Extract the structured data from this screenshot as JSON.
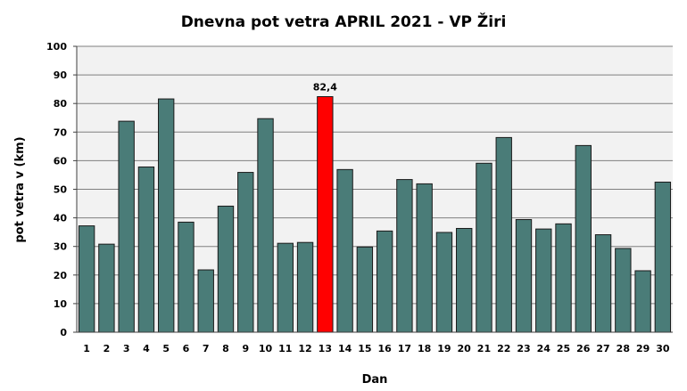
{
  "chart_data": {
    "type": "bar",
    "title": "Dnevna pot vetra APRIL 2021 - VP Žiri",
    "xlabel": "Dan",
    "ylabel": "pot vetra  v (km)",
    "categories": [
      "1",
      "2",
      "3",
      "4",
      "5",
      "6",
      "7",
      "8",
      "9",
      "10",
      "11",
      "12",
      "13",
      "14",
      "15",
      "16",
      "17",
      "18",
      "19",
      "20",
      "21",
      "22",
      "23",
      "24",
      "25",
      "26",
      "27",
      "28",
      "29",
      "30"
    ],
    "values": [
      37.2,
      30.8,
      73.8,
      57.8,
      81.6,
      38.5,
      21.8,
      44.1,
      55.9,
      74.7,
      31.1,
      31.4,
      82.4,
      56.9,
      29.8,
      35.4,
      53.4,
      51.9,
      34.9,
      36.3,
      59.1,
      68.1,
      39.4,
      36.1,
      37.9,
      65.3,
      34.1,
      29.3,
      21.5,
      52.5
    ],
    "ylim": [
      0,
      100
    ],
    "yticks": [
      0,
      10,
      20,
      30,
      40,
      50,
      60,
      70,
      80,
      90,
      100
    ],
    "grid": true,
    "legend": "none",
    "highlight": {
      "index": 12,
      "label": "82,4"
    },
    "colors": {
      "bar": "#4a7c78",
      "bar_highlight": "#ff0000",
      "bar_outline": "#1a1a1a",
      "plot_background": "#f2f2f2",
      "grid": "#7f7f7f"
    }
  }
}
